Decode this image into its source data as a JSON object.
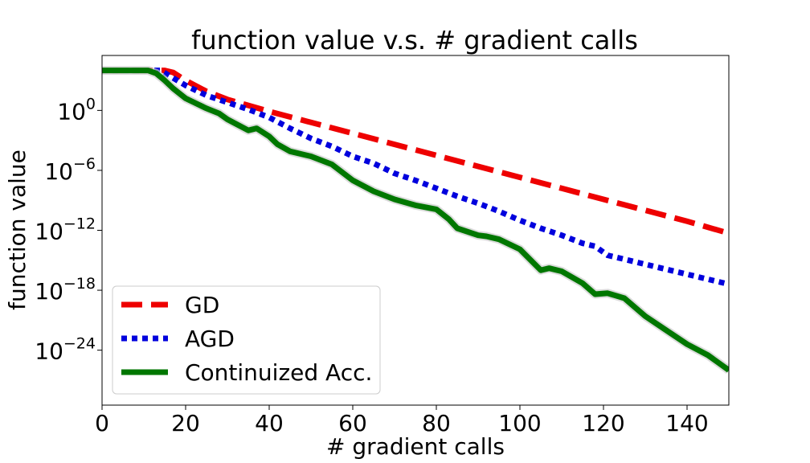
{
  "chart_data": {
    "type": "line",
    "title": "function value v.s. # gradient calls",
    "xlabel": "# gradient calls",
    "ylabel": "function value",
    "xlim": [
      0,
      150
    ],
    "ylim_log10": [
      -29.5,
      5.5
    ],
    "yscale": "log",
    "grid": false,
    "legend_position": "lower-left",
    "x_ticks": [
      {
        "value": 0,
        "label": "0"
      },
      {
        "value": 20,
        "label": "20"
      },
      {
        "value": 40,
        "label": "40"
      },
      {
        "value": 60,
        "label": "60"
      },
      {
        "value": 80,
        "label": "80"
      },
      {
        "value": 100,
        "label": "100"
      },
      {
        "value": 120,
        "label": "120"
      },
      {
        "value": 140,
        "label": "140"
      }
    ],
    "y_ticks": [
      {
        "log10": 0,
        "base": "10",
        "exp": "0"
      },
      {
        "log10": -6,
        "base": "10",
        "exp": "−6"
      },
      {
        "log10": -12,
        "base": "10",
        "exp": "−12"
      },
      {
        "log10": -18,
        "base": "10",
        "exp": "−18"
      },
      {
        "log10": -24,
        "base": "10",
        "exp": "−24"
      }
    ],
    "series": [
      {
        "name": "GD",
        "color": "#ee0000",
        "style": "dashed",
        "x": [
          0,
          10,
          15,
          17,
          20,
          25,
          30,
          35,
          40,
          50,
          60,
          70,
          80,
          90,
          100,
          110,
          120,
          130,
          140,
          150
        ],
        "log10_y": [
          4.0,
          4.0,
          4.0,
          3.8,
          3.0,
          1.9,
          1.1,
          0.5,
          -0.1,
          -1.2,
          -2.3,
          -3.4,
          -4.5,
          -5.6,
          -6.7,
          -7.8,
          -8.9,
          -10.0,
          -11.1,
          -12.3
        ]
      },
      {
        "name": "AGD",
        "color": "#0000dd",
        "style": "dotted",
        "x": [
          0,
          10,
          14,
          16,
          20,
          25,
          30,
          35,
          40,
          45,
          50,
          55,
          60,
          65,
          70,
          75,
          80,
          85,
          90,
          95,
          100,
          105,
          110,
          115,
          118,
          121,
          125,
          130,
          135,
          140,
          145,
          150
        ],
        "log10_y": [
          4.0,
          4.0,
          4.0,
          3.5,
          2.5,
          1.5,
          0.8,
          0.1,
          -0.7,
          -1.8,
          -2.8,
          -3.6,
          -4.6,
          -5.3,
          -6.3,
          -7.0,
          -7.8,
          -8.6,
          -9.3,
          -10.1,
          -11.0,
          -11.8,
          -12.5,
          -13.3,
          -13.6,
          -14.5,
          -14.9,
          -15.4,
          -15.9,
          -16.4,
          -16.9,
          -17.4
        ]
      },
      {
        "name": "Continuized Acc.",
        "color": "#007700",
        "style": "solid",
        "x": [
          0,
          5,
          11,
          13,
          15,
          17,
          20,
          22,
          25,
          28,
          30,
          35,
          37,
          40,
          42,
          45,
          50,
          55,
          60,
          65,
          70,
          75,
          80,
          83,
          85,
          90,
          92,
          95,
          100,
          105,
          107,
          110,
          115,
          118,
          121,
          125,
          130,
          135,
          140,
          145,
          150
        ],
        "log10_y": [
          4.0,
          4.0,
          4.0,
          3.7,
          3.0,
          2.2,
          1.2,
          0.8,
          0.2,
          -0.3,
          -0.9,
          -2.0,
          -1.8,
          -2.6,
          -3.4,
          -4.1,
          -4.6,
          -5.4,
          -7.0,
          -8.1,
          -8.9,
          -9.5,
          -9.9,
          -10.9,
          -11.8,
          -12.5,
          -12.6,
          -12.9,
          -13.9,
          -16.0,
          -15.8,
          -16.1,
          -17.3,
          -18.4,
          -18.3,
          -18.8,
          -20.6,
          -22.0,
          -23.4,
          -24.5,
          -26.0
        ]
      }
    ]
  }
}
